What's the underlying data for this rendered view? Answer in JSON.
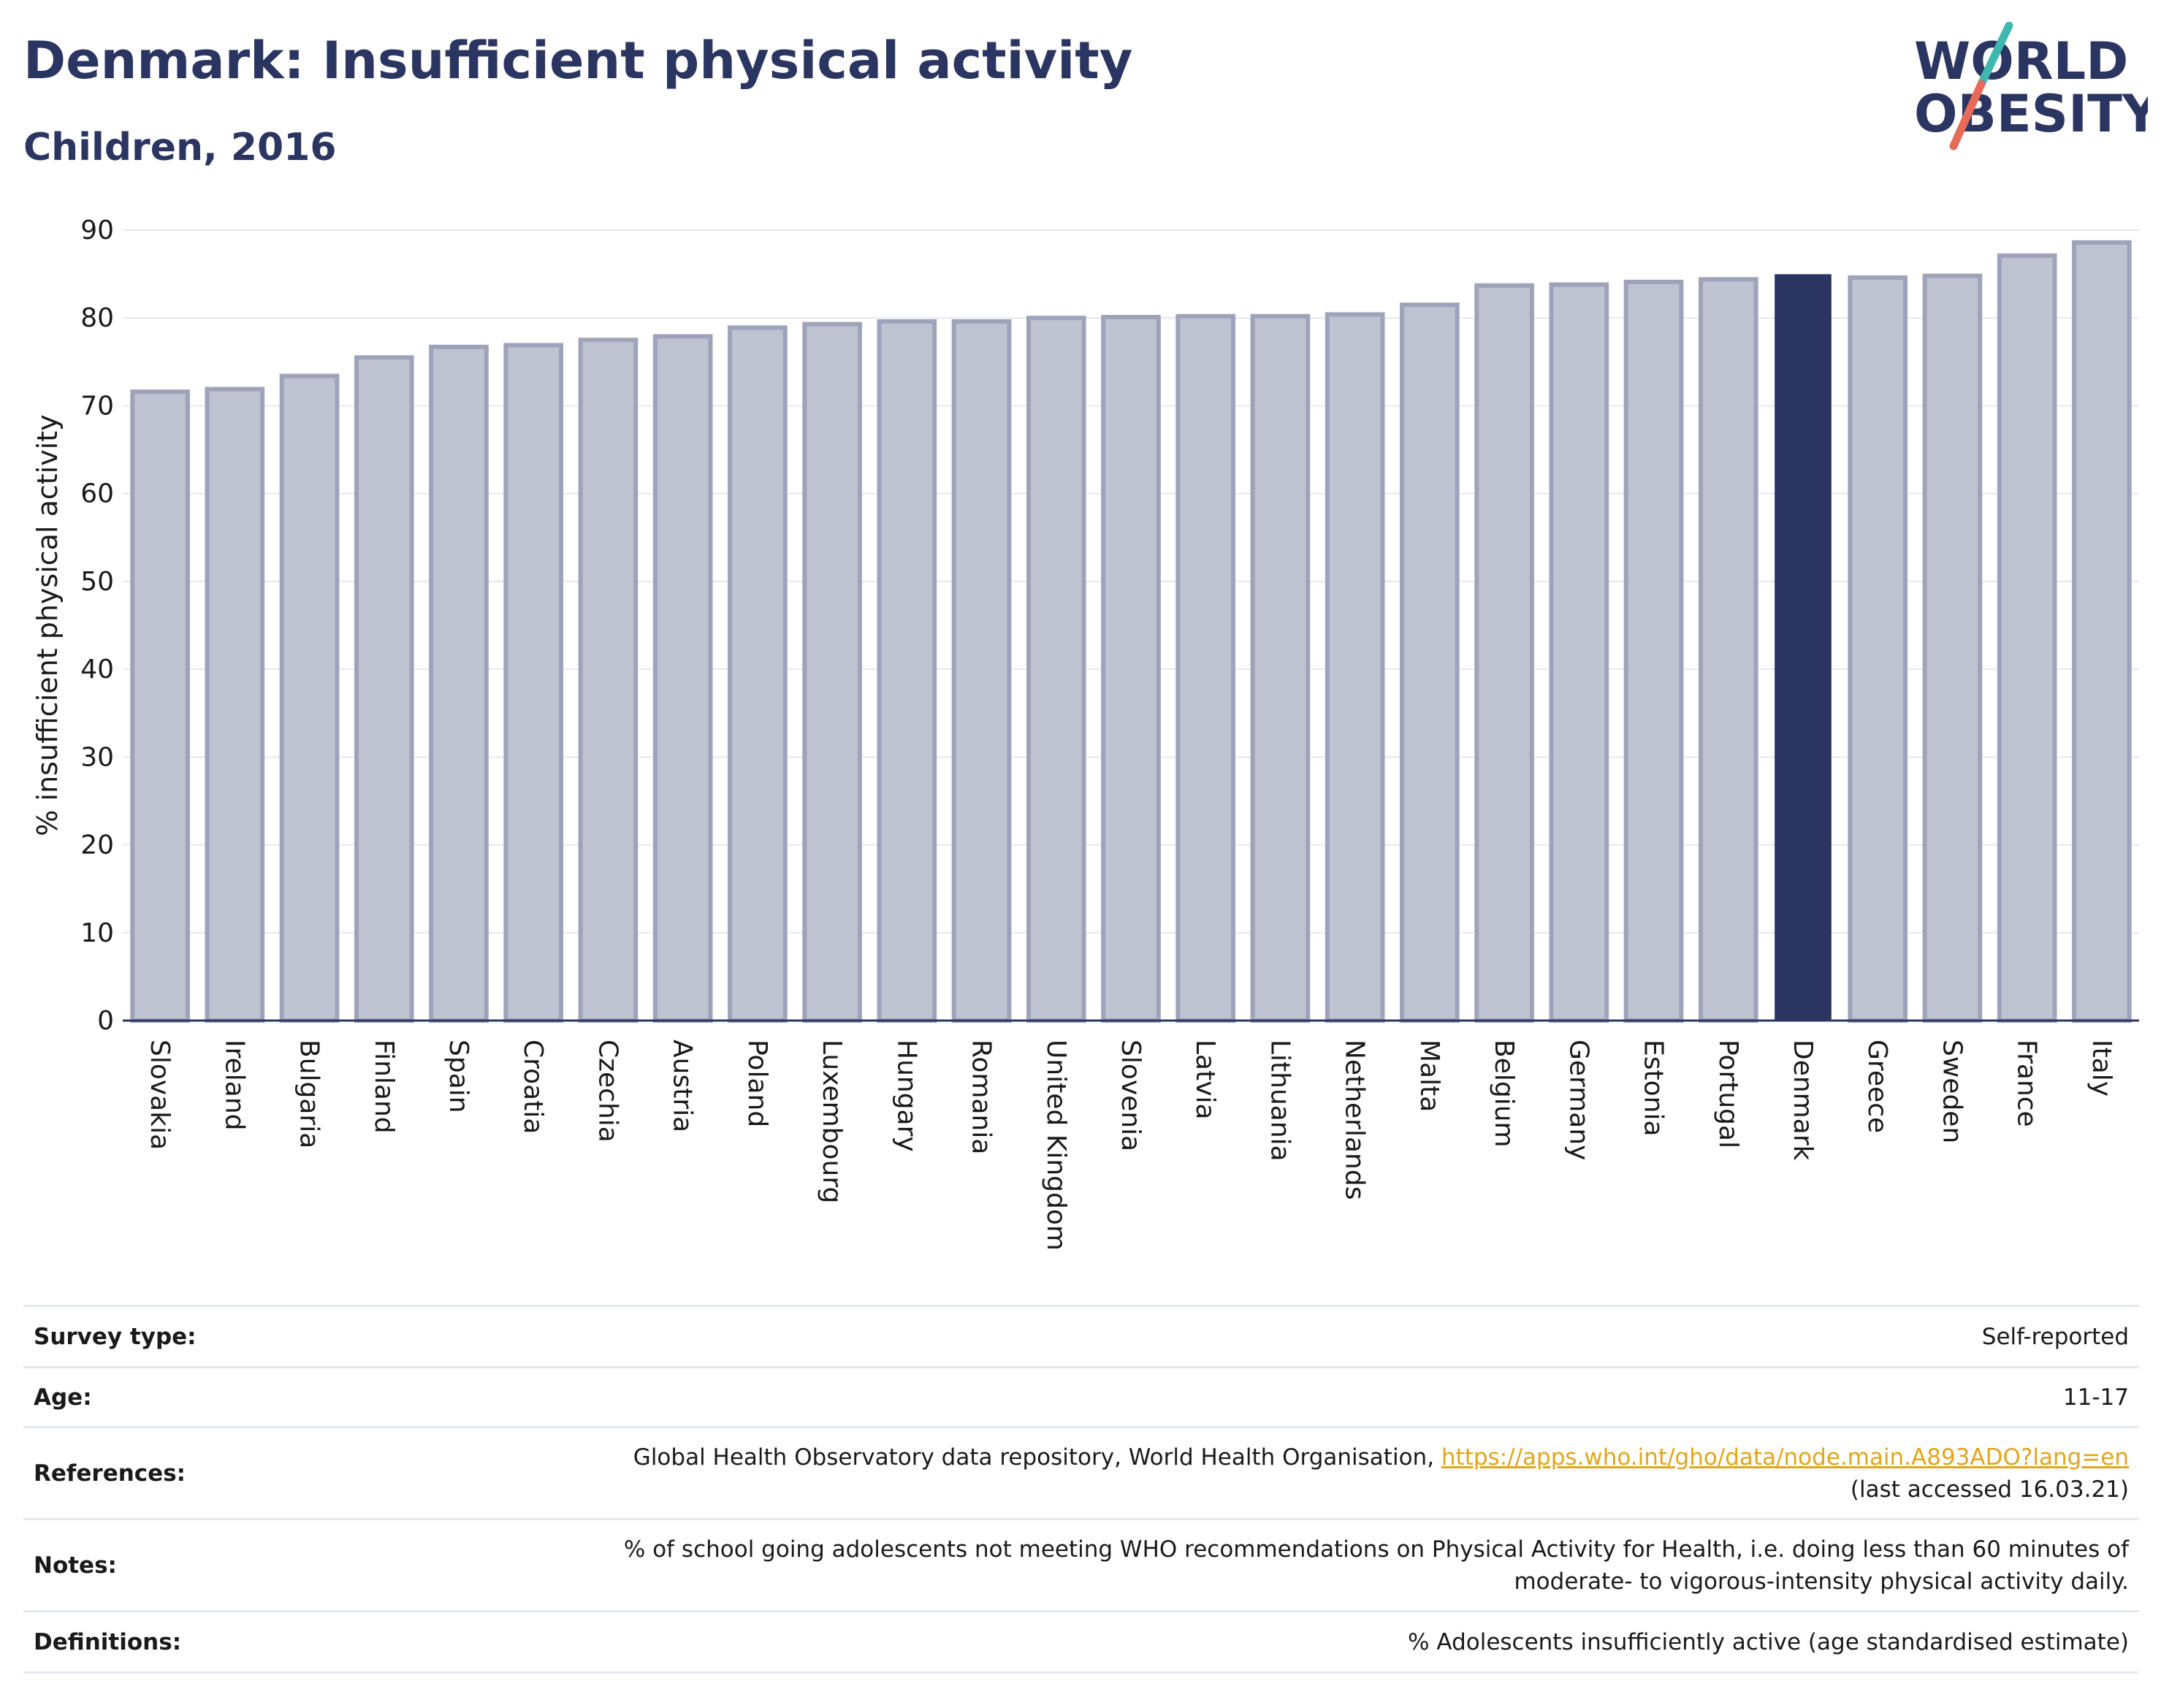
{
  "header": {
    "title": "Denmark: Insufficient physical activity",
    "subtitle": "Children, 2016"
  },
  "logo": {
    "line1": "WORLD",
    "line2": "OBESITY"
  },
  "colors": {
    "title": "#2b3561",
    "bar": "#bfc2d0",
    "bar_border": "#9ea3ba",
    "highlight": "#2b3561",
    "link": "#e3a51a",
    "logo_teal": "#3fb8b0",
    "logo_coral": "#e86a58"
  },
  "chart_data": {
    "type": "bar",
    "ylabel": "% insufficient physical activity",
    "ylim": [
      0,
      90
    ],
    "yticks": [
      0,
      10,
      20,
      30,
      40,
      50,
      60,
      70,
      80,
      90
    ],
    "grid": true,
    "highlight": "Denmark",
    "categories": [
      "Slovakia",
      "Ireland",
      "Bulgaria",
      "Finland",
      "Spain",
      "Croatia",
      "Czechia",
      "Austria",
      "Poland",
      "Luxembourg",
      "Hungary",
      "Romania",
      "United Kingdom",
      "Slovenia",
      "Latvia",
      "Lithuania",
      "Netherlands",
      "Malta",
      "Belgium",
      "Germany",
      "Estonia",
      "Portugal",
      "Denmark",
      "Greece",
      "Sweden",
      "France",
      "Italy"
    ],
    "values": [
      71.6,
      71.9,
      73.4,
      75.5,
      76.7,
      76.9,
      77.5,
      77.9,
      78.9,
      79.3,
      79.6,
      79.6,
      80.0,
      80.1,
      80.2,
      80.2,
      80.4,
      81.5,
      83.7,
      83.8,
      84.1,
      84.4,
      84.9,
      84.6,
      84.8,
      87.1,
      88.6
    ]
  },
  "info": {
    "survey_type": {
      "label": "Survey type:",
      "value": "Self-reported"
    },
    "age": {
      "label": "Age:",
      "value": "11-17"
    },
    "references": {
      "label": "References:",
      "text": "Global Health Observatory data repository, World Health Organisation, ",
      "link": "https://apps.who.int/gho/data/node.main.A893ADO?lang=en",
      "accessed": "(last accessed 16.03.21)"
    },
    "notes": {
      "label": "Notes:",
      "line1": "% of school going adolescents not meeting WHO recommendations on Physical Activity for Health, i.e. doing less than 60 minutes of",
      "line2": "moderate- to vigorous-intensity physical activity daily."
    },
    "definitions": {
      "label": "Definitions:",
      "value": "% Adolescents insufficiently active (age standardised estimate)"
    }
  }
}
